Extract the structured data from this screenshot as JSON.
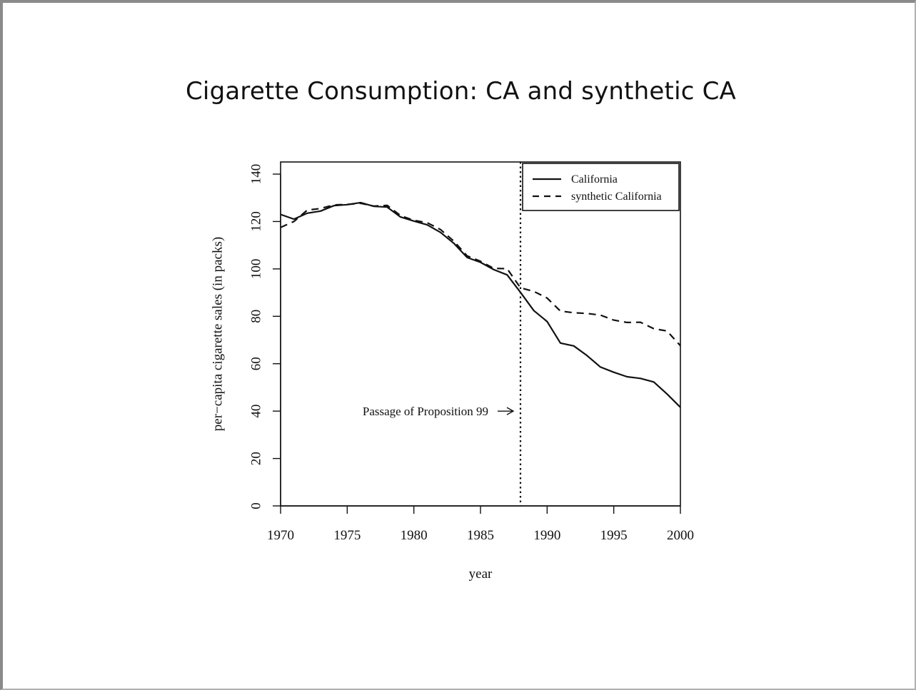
{
  "slide": {
    "title": "Cigarette Consumption: CA and synthetic CA"
  },
  "chart_data": {
    "type": "line",
    "title": "",
    "xlabel": "year",
    "ylabel": "per−capita cigarette sales (in packs)",
    "xlim": [
      1970,
      2000
    ],
    "ylim": [
      0,
      145
    ],
    "x_ticks": [
      1970,
      1975,
      1980,
      1985,
      1990,
      1995,
      2000
    ],
    "y_ticks": [
      0,
      20,
      40,
      60,
      80,
      100,
      120,
      140
    ],
    "grid": false,
    "legend_position": "top-right",
    "x": [
      1970,
      1971,
      1972,
      1973,
      1974,
      1975,
      1976,
      1977,
      1978,
      1979,
      1980,
      1981,
      1982,
      1983,
      1984,
      1985,
      1986,
      1987,
      1988,
      1989,
      1990,
      1991,
      1992,
      1993,
      1994,
      1995,
      1996,
      1997,
      1998,
      1999,
      2000
    ],
    "series": [
      {
        "name": "California",
        "style": "solid",
        "color": "#111111",
        "values": [
          123.0,
          121.0,
          123.5,
          124.4,
          126.7,
          127.1,
          128.0,
          126.4,
          126.1,
          121.9,
          120.2,
          118.6,
          115.4,
          110.8,
          104.8,
          102.8,
          99.7,
          97.5,
          90.1,
          82.4,
          77.8,
          68.7,
          67.5,
          63.4,
          58.6,
          56.4,
          54.5,
          53.8,
          52.3,
          47.2,
          41.6
        ]
      },
      {
        "name": "synthetic California",
        "style": "dashed",
        "color": "#111111",
        "values": [
          117.5,
          120.0,
          124.8,
          125.5,
          127.0,
          127.2,
          127.7,
          126.5,
          126.8,
          122.5,
          120.5,
          119.5,
          116.6,
          111.7,
          105.5,
          103.2,
          100.2,
          100.1,
          92.0,
          90.5,
          87.7,
          82.2,
          81.5,
          81.2,
          80.5,
          78.4,
          77.4,
          77.5,
          74.8,
          73.8,
          67.6
        ]
      }
    ],
    "vline": {
      "x": 1988,
      "style": "dotted"
    },
    "annotation": {
      "text": "Passage of Proposition 99",
      "x": 1988,
      "y": 40
    }
  }
}
